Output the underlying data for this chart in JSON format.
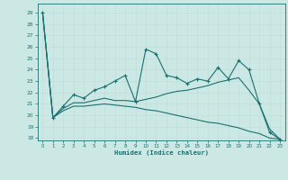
{
  "xlabel": "Humidex (Indice chaleur)",
  "bg_color": "#cce8e4",
  "grid_color": "#b0d8d4",
  "line_color": "#1a7070",
  "xlim": [
    -0.5,
    23.5
  ],
  "ylim": [
    17.8,
    29.8
  ],
  "yticks": [
    18,
    19,
    20,
    21,
    22,
    23,
    24,
    25,
    26,
    27,
    28,
    29
  ],
  "xticks": [
    0,
    1,
    2,
    3,
    4,
    5,
    6,
    7,
    8,
    9,
    10,
    11,
    12,
    13,
    14,
    15,
    16,
    17,
    18,
    19,
    20,
    21,
    22,
    23
  ],
  "line1_x": [
    0,
    1,
    2,
    3,
    4,
    5,
    6,
    7,
    8,
    9,
    10,
    11,
    12,
    13,
    14,
    15,
    16,
    17,
    18,
    19,
    20,
    21,
    22,
    23
  ],
  "line1_y": [
    29,
    19.8,
    20.8,
    21.8,
    21.5,
    22.2,
    22.5,
    23.0,
    23.5,
    21.2,
    25.8,
    25.4,
    23.5,
    23.3,
    22.8,
    23.2,
    23.0,
    24.2,
    23.2,
    24.8,
    24.0,
    21.0,
    18.5,
    17.9
  ],
  "line2_x": [
    0,
    1,
    2,
    3,
    4,
    5,
    6,
    7,
    8,
    9,
    10,
    11,
    12,
    13,
    14,
    15,
    16,
    17,
    18,
    19,
    20,
    21,
    22,
    23
  ],
  "line2_y": [
    29,
    19.8,
    20.6,
    21.1,
    21.1,
    21.3,
    21.5,
    21.3,
    21.3,
    21.2,
    21.4,
    21.6,
    21.9,
    22.1,
    22.2,
    22.4,
    22.6,
    22.9,
    23.1,
    23.3,
    22.2,
    21.0,
    18.8,
    17.9
  ],
  "line3_x": [
    0,
    1,
    2,
    3,
    4,
    5,
    6,
    7,
    8,
    9,
    10,
    11,
    12,
    13,
    14,
    15,
    16,
    17,
    18,
    19,
    20,
    21,
    22,
    23
  ],
  "line3_y": [
    29,
    19.8,
    20.4,
    20.8,
    20.8,
    20.9,
    21.0,
    20.9,
    20.8,
    20.7,
    20.5,
    20.4,
    20.2,
    20.0,
    19.8,
    19.6,
    19.4,
    19.3,
    19.1,
    18.9,
    18.6,
    18.4,
    18.0,
    17.9
  ]
}
